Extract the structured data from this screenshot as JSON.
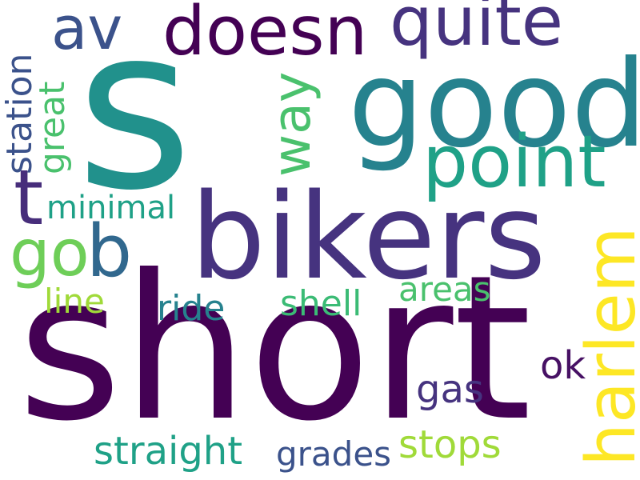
{
  "word_cloud": {
    "words": [
      {
        "text": "s",
        "color": "#21918c"
      },
      {
        "text": "short",
        "color": "#440154"
      },
      {
        "text": "bikers",
        "color": "#46337f"
      },
      {
        "text": "good",
        "color": "#26828e"
      },
      {
        "text": "doesn",
        "color": "#440154"
      },
      {
        "text": "quite",
        "color": "#46337f"
      },
      {
        "text": "av",
        "color": "#3b528b"
      },
      {
        "text": "point",
        "color": "#1fa187"
      },
      {
        "text": "t",
        "color": "#472d7b"
      },
      {
        "text": "way",
        "color": "#4ac16d"
      },
      {
        "text": "harlem",
        "color": "#fde725"
      },
      {
        "text": "go",
        "color": "#6ece58"
      },
      {
        "text": "b",
        "color": "#31688e"
      },
      {
        "text": "station",
        "color": "#3b528b"
      },
      {
        "text": "great",
        "color": "#4ac16d"
      },
      {
        "text": "minimal",
        "color": "#1fa187"
      },
      {
        "text": "line",
        "color": "#a0da39"
      },
      {
        "text": "ride",
        "color": "#26828e"
      },
      {
        "text": "shell",
        "color": "#3bbb75"
      },
      {
        "text": "areas",
        "color": "#4ac16d"
      },
      {
        "text": "ok",
        "color": "#471164"
      },
      {
        "text": "gas",
        "color": "#46337f"
      },
      {
        "text": "stops",
        "color": "#a0da39"
      },
      {
        "text": "straight",
        "color": "#1fa187"
      },
      {
        "text": "grades",
        "color": "#3b528b"
      }
    ]
  }
}
